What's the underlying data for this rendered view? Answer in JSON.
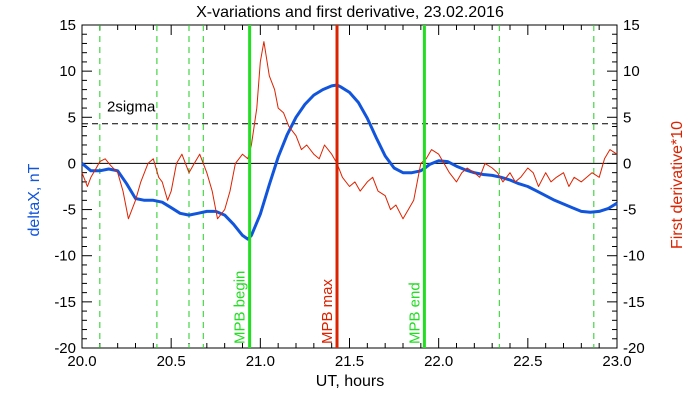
{
  "chart_data": {
    "type": "line",
    "title": "X-variations and first derivative, 23.02.2016",
    "xlabel": "UT, hours",
    "ylabel_left": "deltaX, nT",
    "ylabel_right": "First derivative*10",
    "xlim": [
      20.0,
      23.0
    ],
    "ylim": [
      -20,
      15
    ],
    "x_ticks": [
      "20.0",
      "20.5",
      "21.0",
      "21.5",
      "22.0",
      "22.5",
      "23.0"
    ],
    "x_tick_values": [
      20.0,
      20.5,
      21.0,
      21.5,
      22.0,
      22.5,
      23.0
    ],
    "y_ticks": [
      "15",
      "10",
      "5",
      "0",
      "-5",
      "-10",
      "-15",
      "-20"
    ],
    "y_tick_values": [
      15,
      10,
      5,
      0,
      -5,
      -10,
      -15,
      -20
    ],
    "grid": false,
    "colors": {
      "deltaX": "#1155dd",
      "derivative": "#dd2200",
      "mpb": "#22dd22",
      "mpb_max": "#dd2200",
      "dashed_green": "#22cc22"
    },
    "series": [
      {
        "name": "deltaX, nT",
        "axis": "left",
        "x": [
          20.0,
          20.05,
          20.1,
          20.15,
          20.2,
          20.25,
          20.3,
          20.35,
          20.4,
          20.45,
          20.5,
          20.55,
          20.6,
          20.65,
          20.7,
          20.75,
          20.8,
          20.85,
          20.9,
          20.93,
          20.95,
          21.0,
          21.05,
          21.1,
          21.15,
          21.2,
          21.25,
          21.3,
          21.35,
          21.4,
          21.43,
          21.45,
          21.5,
          21.55,
          21.6,
          21.65,
          21.7,
          21.75,
          21.8,
          21.85,
          21.9,
          21.93,
          21.95,
          22.0,
          22.05,
          22.1,
          22.15,
          22.2,
          22.25,
          22.3,
          22.35,
          22.4,
          22.45,
          22.5,
          22.55,
          22.6,
          22.65,
          22.7,
          22.75,
          22.8,
          22.85,
          22.9,
          22.95,
          23.0
        ],
        "values": [
          0.0,
          -0.8,
          -0.8,
          -0.6,
          -0.8,
          -2.2,
          -3.8,
          -4.0,
          -4.0,
          -4.2,
          -4.8,
          -5.4,
          -5.6,
          -5.4,
          -5.2,
          -5.2,
          -5.6,
          -6.6,
          -7.8,
          -8.2,
          -7.8,
          -5.5,
          -2.3,
          0.7,
          3.1,
          5.0,
          6.4,
          7.4,
          8.0,
          8.4,
          8.5,
          8.3,
          7.7,
          6.6,
          4.9,
          2.8,
          0.8,
          -0.5,
          -1.0,
          -1.0,
          -0.8,
          -0.4,
          -0.1,
          0.3,
          0.2,
          -0.3,
          -0.7,
          -1.0,
          -1.2,
          -1.3,
          -1.5,
          -1.8,
          -2.2,
          -2.5,
          -3.0,
          -3.5,
          -4.0,
          -4.4,
          -4.8,
          -5.2,
          -5.3,
          -5.2,
          -4.9,
          -4.3
        ]
      },
      {
        "name": "First derivative*10",
        "axis": "right",
        "x": [
          20.0,
          20.03,
          20.05,
          20.08,
          20.1,
          20.13,
          20.16,
          20.2,
          20.23,
          20.26,
          20.3,
          20.33,
          20.37,
          20.4,
          20.43,
          20.45,
          20.48,
          20.5,
          20.53,
          20.56,
          20.6,
          20.63,
          20.66,
          20.7,
          20.73,
          20.76,
          20.8,
          20.83,
          20.86,
          20.9,
          20.93,
          20.95,
          20.98,
          21.0,
          21.02,
          21.05,
          21.08,
          21.1,
          21.13,
          21.16,
          21.2,
          21.23,
          21.26,
          21.3,
          21.33,
          21.36,
          21.4,
          21.43,
          21.46,
          21.5,
          21.53,
          21.56,
          21.6,
          21.63,
          21.66,
          21.7,
          21.73,
          21.76,
          21.8,
          21.83,
          21.86,
          21.9,
          21.93,
          21.96,
          22.0,
          22.03,
          22.06,
          22.1,
          22.13,
          22.16,
          22.2,
          22.23,
          22.26,
          22.3,
          22.33,
          22.36,
          22.4,
          22.43,
          22.46,
          22.5,
          22.53,
          22.56,
          22.6,
          22.63,
          22.66,
          22.7,
          22.73,
          22.76,
          22.8,
          22.83,
          22.86,
          22.9,
          22.93,
          22.96,
          23.0
        ],
        "values": [
          -1.0,
          -2.5,
          -1.5,
          -0.5,
          0.2,
          0.5,
          -0.2,
          -1.0,
          -3.0,
          -6.0,
          -4.0,
          -2.0,
          0.0,
          0.5,
          -1.5,
          -2.0,
          -4.0,
          -3.0,
          0.0,
          1.0,
          -1.0,
          0.0,
          1.0,
          -1.0,
          -3.0,
          -6.0,
          -5.0,
          -3.0,
          0.0,
          1.0,
          0.5,
          2.0,
          6.0,
          11.0,
          13.2,
          9.5,
          8.0,
          6.0,
          5.5,
          4.0,
          3.0,
          1.5,
          2.0,
          1.0,
          0.5,
          2.0,
          1.0,
          0.0,
          -1.5,
          -2.5,
          -2.0,
          -3.0,
          -2.0,
          -1.5,
          -3.0,
          -3.5,
          -5.0,
          -4.5,
          -6.0,
          -5.0,
          -4.0,
          0.0,
          0.5,
          1.5,
          1.0,
          0.0,
          -1.0,
          -2.0,
          -1.0,
          -0.5,
          -1.0,
          -1.5,
          0.0,
          -0.5,
          -1.0,
          -2.0,
          -1.0,
          -2.0,
          -1.5,
          -0.5,
          -1.0,
          -2.5,
          -1.0,
          -2.0,
          -1.5,
          -1.0,
          -2.5,
          -1.5,
          -2.0,
          -1.5,
          -1.0,
          -1.5,
          0.5,
          1.5,
          1.0
        ]
      }
    ],
    "reference_lines": {
      "two_sigma": {
        "label": "2sigma",
        "value": 4.3
      },
      "zero": {
        "value": 0
      }
    },
    "vertical_markers": [
      {
        "x": 20.94,
        "label": "MPB begin",
        "color": "#22dd22"
      },
      {
        "x": 21.43,
        "label": "MPB max",
        "color": "#dd2200"
      },
      {
        "x": 21.92,
        "label": "MPB end",
        "color": "#22dd22"
      }
    ],
    "dashed_vertical_x": [
      20.1,
      20.42,
      20.6,
      20.68,
      22.34,
      22.87
    ]
  }
}
